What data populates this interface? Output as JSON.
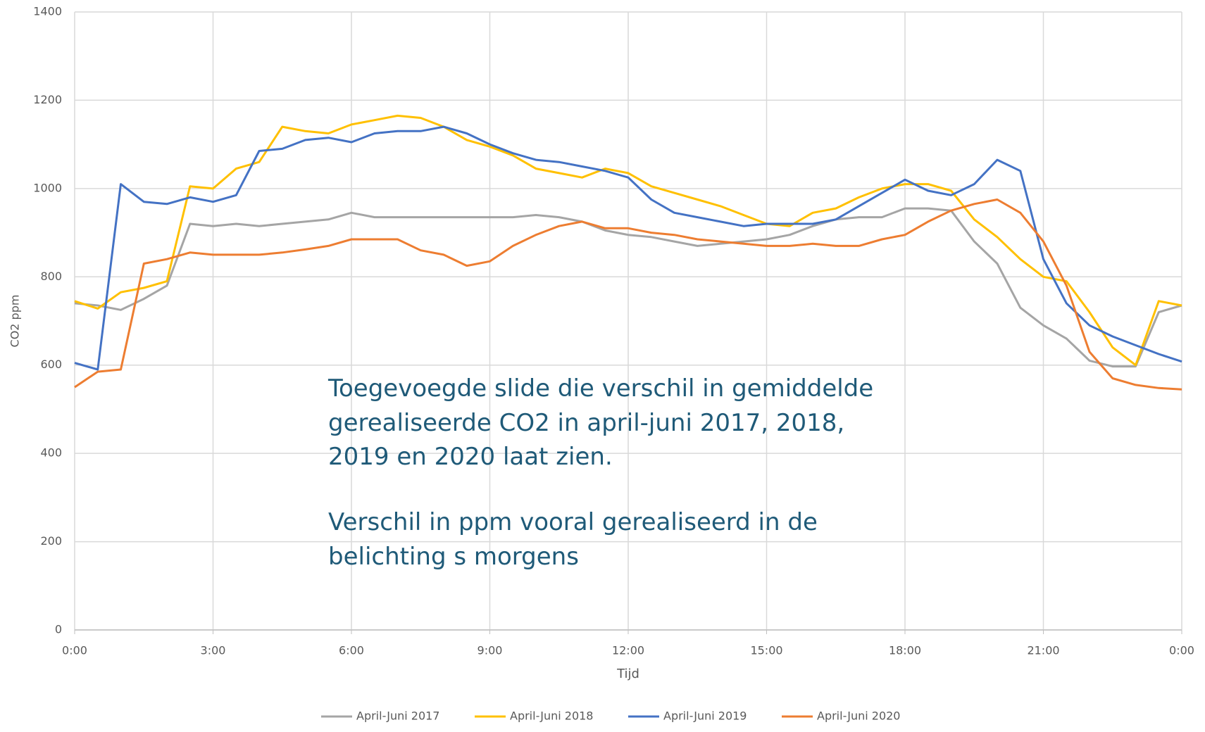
{
  "chart_data": {
    "type": "line",
    "ylabel": "CO2 ppm",
    "xlabel": "Tijd",
    "x": [
      0,
      0.5,
      1,
      1.5,
      2,
      2.5,
      3,
      3.5,
      4,
      4.5,
      5,
      5.5,
      6,
      6.5,
      7,
      7.5,
      8,
      8.5,
      9,
      9.5,
      10,
      10.5,
      11,
      11.5,
      12,
      12.5,
      13,
      13.5,
      14,
      14.5,
      15,
      15.5,
      16,
      16.5,
      17,
      17.5,
      18,
      18.5,
      19,
      19.5,
      20,
      20.5,
      21,
      21.5,
      22,
      22.5,
      23,
      23.5,
      24
    ],
    "series": [
      {
        "name": "April-Juni 2017",
        "color": "#a5a5a5",
        "values": [
          740,
          735,
          725,
          750,
          780,
          920,
          915,
          920,
          915,
          920,
          925,
          930,
          945,
          935,
          935,
          935,
          935,
          935,
          935,
          935,
          940,
          935,
          925,
          905,
          895,
          890,
          880,
          870,
          875,
          880,
          885,
          895,
          915,
          930,
          935,
          935,
          955,
          955,
          950,
          880,
          830,
          730,
          690,
          660,
          610,
          597,
          597,
          720,
          735
        ]
      },
      {
        "name": "April-Juni 2018",
        "color": "#ffc000",
        "values": [
          745,
          728,
          765,
          775,
          790,
          1005,
          1000,
          1045,
          1060,
          1140,
          1130,
          1125,
          1145,
          1155,
          1165,
          1160,
          1140,
          1110,
          1095,
          1075,
          1045,
          1035,
          1025,
          1045,
          1035,
          1005,
          990,
          975,
          960,
          940,
          920,
          915,
          945,
          955,
          980,
          1000,
          1010,
          1010,
          995,
          930,
          890,
          840,
          800,
          790,
          720,
          640,
          600,
          745,
          735
        ]
      },
      {
        "name": "April-Juni 2019",
        "color": "#4472c4",
        "values": [
          605,
          590,
          1010,
          970,
          965,
          980,
          970,
          985,
          1085,
          1090,
          1110,
          1115,
          1105,
          1125,
          1130,
          1130,
          1140,
          1125,
          1100,
          1080,
          1065,
          1060,
          1050,
          1040,
          1025,
          975,
          945,
          935,
          925,
          915,
          920,
          920,
          920,
          930,
          960,
          990,
          1020,
          995,
          985,
          1010,
          1065,
          1040,
          840,
          740,
          690,
          665,
          645,
          625,
          608
        ]
      },
      {
        "name": "April-Juni 2020",
        "color": "#ed7d31",
        "values": [
          550,
          585,
          590,
          830,
          840,
          855,
          850,
          850,
          850,
          855,
          862,
          870,
          885,
          885,
          885,
          860,
          850,
          825,
          835,
          870,
          895,
          915,
          925,
          910,
          910,
          900,
          895,
          885,
          880,
          875,
          870,
          870,
          875,
          870,
          870,
          885,
          895,
          925,
          950,
          965,
          975,
          945,
          880,
          780,
          630,
          570,
          555,
          548,
          545
        ]
      }
    ],
    "xlim": [
      0,
      24
    ],
    "xticks": [
      {
        "value": 0,
        "label": "0:00"
      },
      {
        "value": 3,
        "label": "3:00"
      },
      {
        "value": 6,
        "label": "6:00"
      },
      {
        "value": 9,
        "label": "9:00"
      },
      {
        "value": 12,
        "label": "12:00"
      },
      {
        "value": 15,
        "label": "15:00"
      },
      {
        "value": 18,
        "label": "18:00"
      },
      {
        "value": 21,
        "label": "21:00"
      },
      {
        "value": 24,
        "label": "0:00"
      }
    ],
    "ylim": [
      0,
      1400
    ],
    "yticks": [
      0,
      200,
      400,
      600,
      800,
      1000,
      1200,
      1400
    ],
    "grid": true,
    "legend": "bottom",
    "annotations": [
      "Toegevoegde slide die verschil in gemiddelde",
      "gerealiseerde CO2 in april-juni 2017, 2018,",
      "2019 en 2020 laat zien.",
      "Verschil in ppm vooral gerealiseerd in de",
      "belichting s morgens"
    ]
  }
}
